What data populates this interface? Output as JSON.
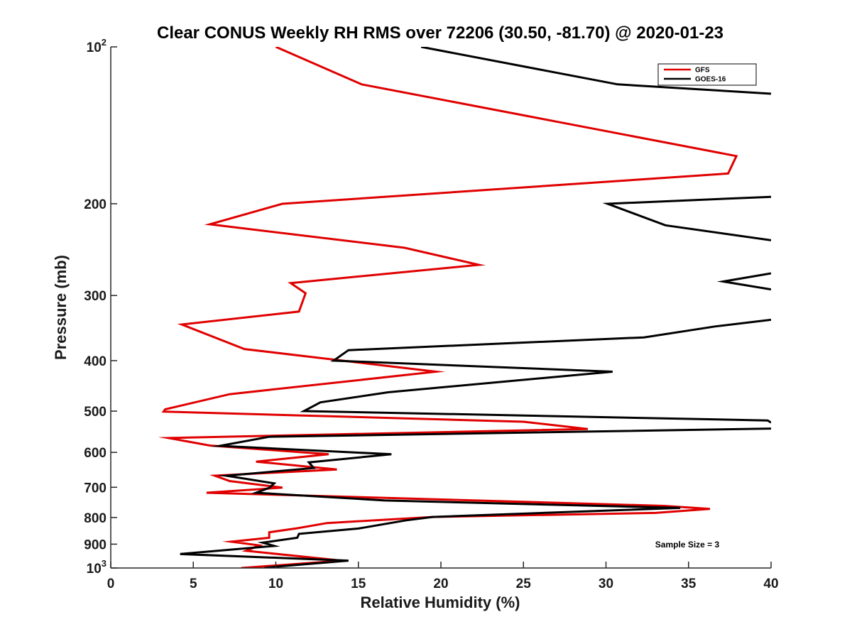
{
  "chart_data": {
    "type": "line",
    "title": "Clear CONUS Weekly RH RMS over 72206 (30.50, -81.70) @ 2020-01-23",
    "xlabel": "Relative Humidity (%)",
    "ylabel": "Pressure (mb)",
    "xlim": [
      0,
      40
    ],
    "ylim": [
      100,
      1000
    ],
    "yscale": "log",
    "y_reversed": true,
    "grid": false,
    "legend_position": "top-right",
    "x_ticks": [
      "0",
      "5",
      "10",
      "15",
      "20",
      "25",
      "30",
      "35",
      "40"
    ],
    "y_ticks": [
      {
        "value": 100,
        "base": "10",
        "exp": "2"
      },
      {
        "value": 200,
        "label": "200"
      },
      {
        "value": 300,
        "label": "300"
      },
      {
        "value": 400,
        "label": "400"
      },
      {
        "value": 500,
        "label": "500"
      },
      {
        "value": 600,
        "label": "600"
      },
      {
        "value": 700,
        "label": "700"
      },
      {
        "value": 800,
        "label": "800"
      },
      {
        "value": 900,
        "label": "900"
      },
      {
        "value": 1000,
        "base": "10",
        "exp": "3"
      }
    ],
    "annotation": "Sample Size = 3",
    "series": [
      {
        "name": "GFS",
        "color": "#e00000",
        "points": [
          [
            10.0,
            100
          ],
          [
            15.2,
            118
          ],
          [
            25.9,
            137
          ],
          [
            37.9,
            162
          ],
          [
            37.4,
            175
          ],
          [
            10.4,
            200
          ],
          [
            6.0,
            219
          ],
          [
            17.8,
            243
          ],
          [
            22.3,
            262
          ],
          [
            10.9,
            284
          ],
          [
            11.8,
            297
          ],
          [
            11.4,
            322
          ],
          [
            4.3,
            341
          ],
          [
            8.1,
            380
          ],
          [
            19.7,
            420
          ],
          [
            7.2,
            464
          ],
          [
            3.3,
            496
          ],
          [
            3.2,
            501
          ],
          [
            25.0,
            524
          ],
          [
            28.9,
            541
          ],
          [
            3.5,
            563
          ],
          [
            6.0,
            582
          ],
          [
            13.2,
            605
          ],
          [
            8.8,
            625
          ],
          [
            13.7,
            647
          ],
          [
            6.3,
            665
          ],
          [
            7.2,
            681
          ],
          [
            10.4,
            701
          ],
          [
            5.8,
            717
          ],
          [
            33.5,
            760
          ],
          [
            36.3,
            770
          ],
          [
            33.0,
            784
          ],
          [
            19.5,
            798
          ],
          [
            13.1,
            820
          ],
          [
            11.3,
            839
          ],
          [
            9.6,
            854
          ],
          [
            9.6,
            875
          ],
          [
            7.3,
            890
          ],
          [
            9.0,
            905
          ],
          [
            8.2,
            927
          ],
          [
            14.0,
            968
          ],
          [
            7.9,
            1000
          ]
        ]
      },
      {
        "name": "GOES-16",
        "color": "#000000",
        "points": [
          [
            18.8,
            100
          ],
          [
            30.7,
            118
          ],
          [
            40.0,
            123
          ],
          null,
          [
            40.0,
            194
          ],
          [
            30.1,
            200
          ],
          [
            33.6,
            220
          ],
          [
            40.0,
            235
          ],
          null,
          [
            40.0,
            272
          ],
          [
            37.1,
            282
          ],
          [
            40.0,
            292
          ],
          null,
          [
            40.0,
            334
          ],
          [
            36.6,
            344
          ],
          [
            32.3,
            361
          ],
          [
            14.4,
            382
          ],
          [
            13.5,
            400
          ],
          [
            30.4,
            420
          ],
          [
            16.8,
            460
          ],
          [
            12.7,
            481
          ],
          [
            11.7,
            500
          ],
          [
            39.8,
            521
          ],
          [
            40.0,
            526
          ],
          null,
          [
            40.0,
            540
          ],
          [
            9.6,
            560
          ],
          [
            6.6,
            583
          ],
          [
            17.0,
            605
          ],
          [
            12.0,
            627
          ],
          [
            12.3,
            643
          ],
          [
            7.0,
            665
          ],
          [
            9.9,
            688
          ],
          [
            9.6,
            702
          ],
          [
            8.8,
            717
          ],
          [
            16.6,
            742
          ],
          [
            34.5,
            767
          ],
          [
            19.5,
            798
          ],
          [
            17.9,
            810
          ],
          [
            15.0,
            840
          ],
          [
            11.4,
            860
          ],
          [
            11.3,
            875
          ],
          [
            9.2,
            894
          ],
          [
            9.9,
            907
          ],
          [
            4.2,
            940
          ],
          [
            14.4,
            968
          ],
          [
            10.2,
            993
          ],
          [
            9.3,
            1000
          ]
        ]
      }
    ]
  }
}
